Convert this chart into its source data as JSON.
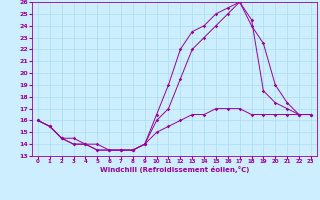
{
  "xlabel": "Windchill (Refroidissement éolien,°C)",
  "bg_color": "#cceeff",
  "line_color": "#990099",
  "grid_color": "#aaddee",
  "xlim": [
    -0.5,
    23.5
  ],
  "ylim": [
    13,
    26
  ],
  "xticks": [
    0,
    1,
    2,
    3,
    4,
    5,
    6,
    7,
    8,
    9,
    10,
    11,
    12,
    13,
    14,
    15,
    16,
    17,
    18,
    19,
    20,
    21,
    22,
    23
  ],
  "yticks": [
    13,
    14,
    15,
    16,
    17,
    18,
    19,
    20,
    21,
    22,
    23,
    24,
    25,
    26
  ],
  "line1_x": [
    0,
    1,
    2,
    3,
    4,
    5,
    6,
    7,
    8,
    9,
    10,
    11,
    12,
    13,
    14,
    15,
    16,
    17,
    18,
    19,
    20,
    21,
    22,
    23
  ],
  "line1_y": [
    16,
    15.5,
    14.5,
    14.5,
    14,
    14,
    13.5,
    13.5,
    13.5,
    14,
    16.5,
    19,
    22,
    23.5,
    24,
    25,
    25.5,
    26,
    24,
    22.5,
    19,
    17.5,
    16.5,
    16.5
  ],
  "line2_x": [
    0,
    1,
    2,
    3,
    4,
    5,
    6,
    7,
    8,
    9,
    10,
    11,
    12,
    13,
    14,
    15,
    16,
    17,
    18,
    19,
    20,
    21,
    22,
    23
  ],
  "line2_y": [
    16,
    15.5,
    14.5,
    14,
    14,
    13.5,
    13.5,
    13.5,
    13.5,
    14,
    16,
    17,
    19.5,
    22,
    23,
    24,
    25,
    26,
    24.5,
    18.5,
    17.5,
    17,
    16.5,
    16.5
  ],
  "line3_x": [
    0,
    1,
    2,
    3,
    4,
    5,
    6,
    7,
    8,
    9,
    10,
    11,
    12,
    13,
    14,
    15,
    16,
    17,
    18,
    19,
    20,
    21,
    22,
    23
  ],
  "line3_y": [
    16,
    15.5,
    14.5,
    14,
    14,
    13.5,
    13.5,
    13.5,
    13.5,
    14,
    15,
    15.5,
    16,
    16.5,
    16.5,
    17,
    17,
    17,
    16.5,
    16.5,
    16.5,
    16.5,
    16.5,
    16.5
  ]
}
